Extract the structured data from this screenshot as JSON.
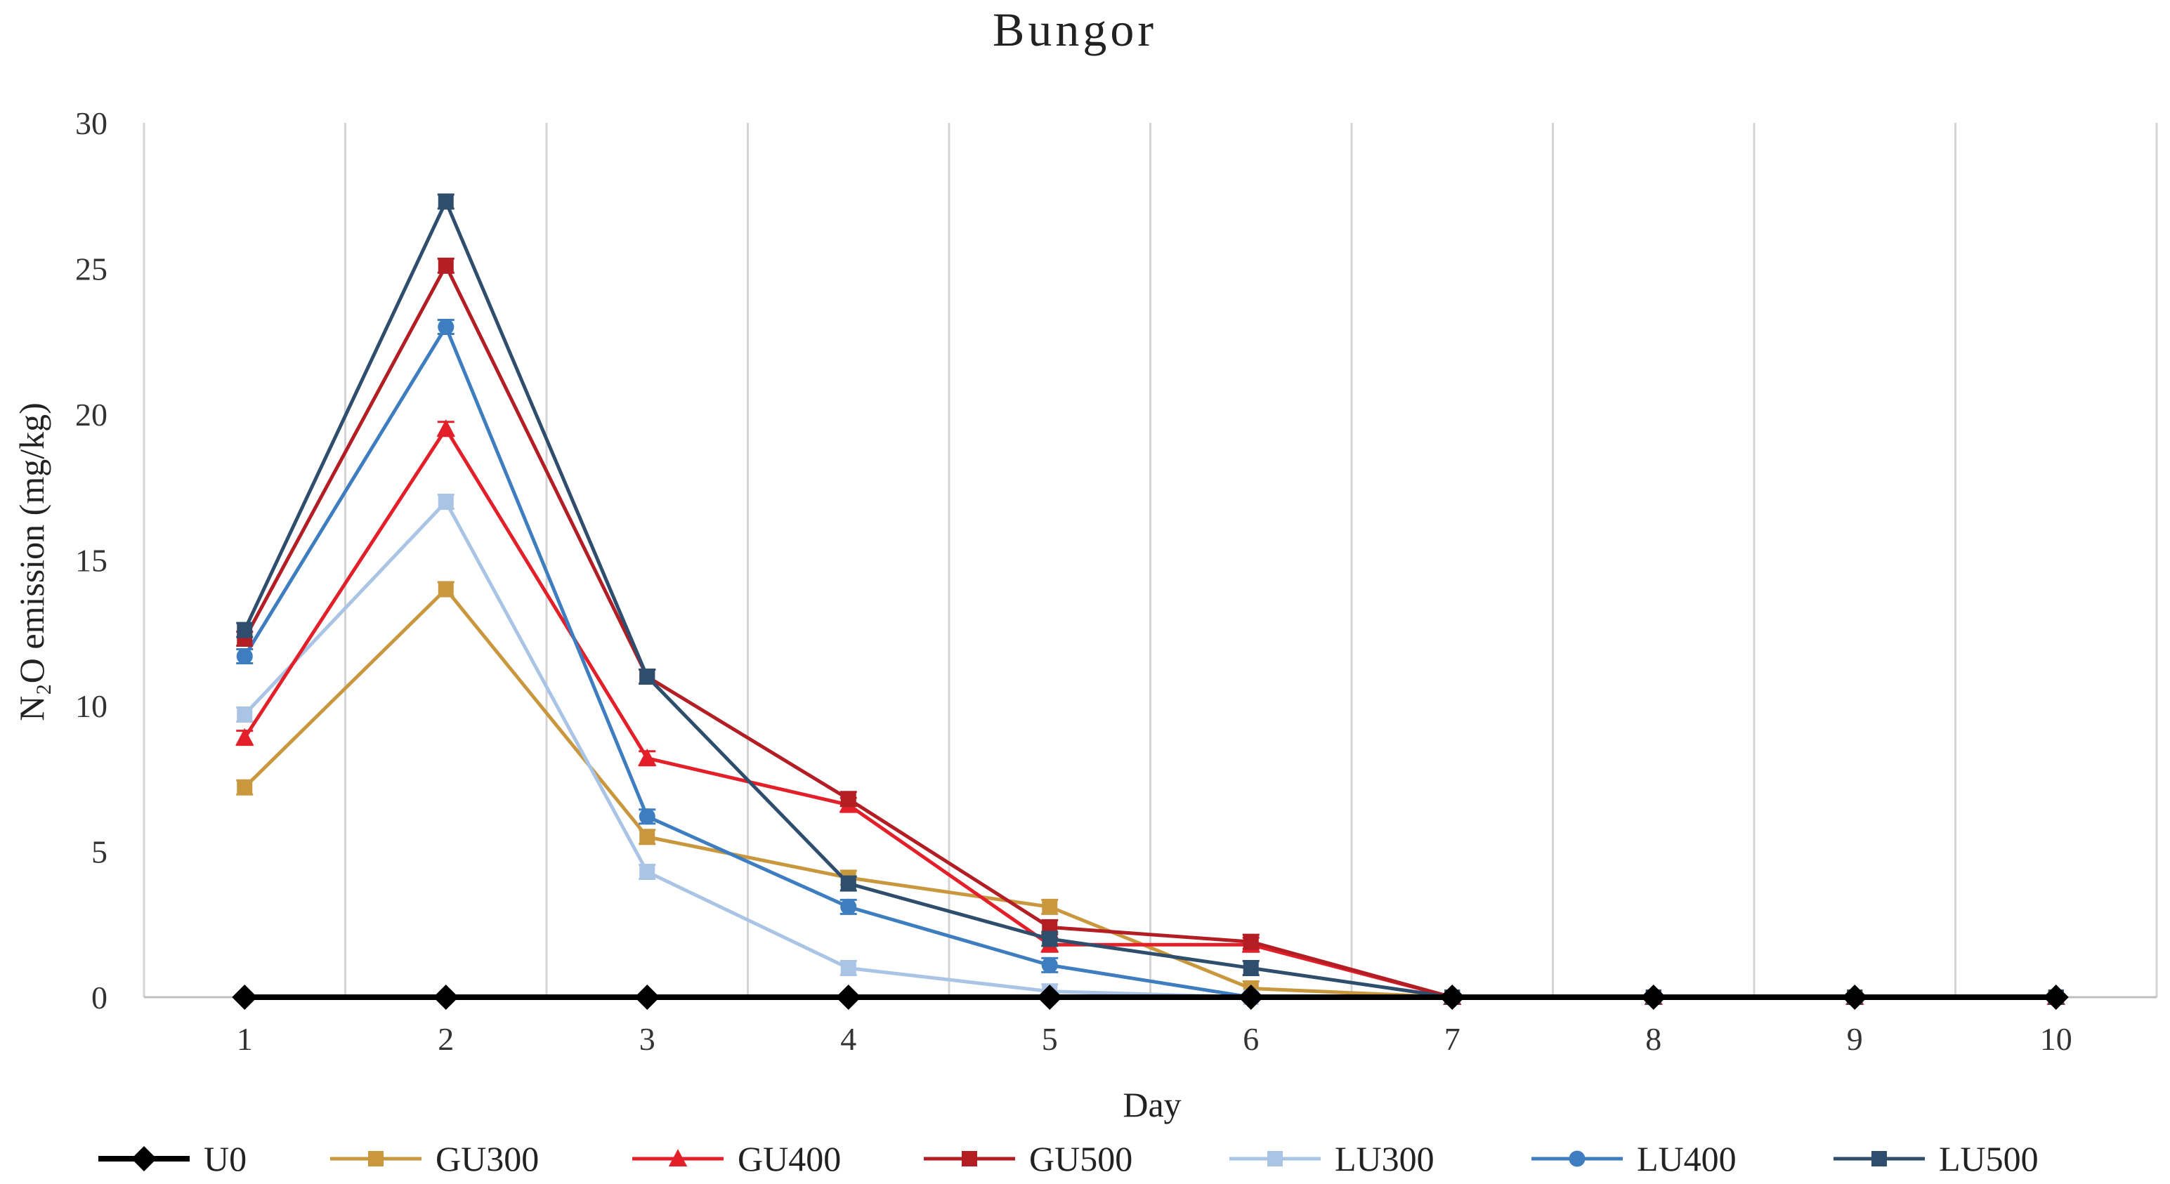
{
  "chart_data": {
    "type": "line",
    "title": "Bungor",
    "xlabel": "Day",
    "ylabel": "N₂O emission (mg/kg)",
    "x": [
      1,
      2,
      3,
      4,
      5,
      6,
      7,
      8,
      9,
      10
    ],
    "x_tick_labels": [
      "1",
      "2",
      "3",
      "4",
      "5",
      "6",
      "7",
      "8",
      "9",
      "10"
    ],
    "ylim": [
      0,
      30
    ],
    "y_ticks": [
      0,
      5,
      10,
      15,
      20,
      25,
      30
    ],
    "grid": "vertical",
    "legend_position": "bottom",
    "series": [
      {
        "name": "GU300",
        "color": "#C9983E",
        "marker": "square",
        "values": [
          7.2,
          14.0,
          5.5,
          4.1,
          3.1,
          0.3,
          0,
          0,
          0,
          0
        ]
      },
      {
        "name": "LU300",
        "color": "#A9C4E4",
        "marker": "square",
        "values": [
          9.7,
          17.0,
          4.3,
          1.0,
          0.2,
          0,
          0,
          0,
          0,
          0
        ]
      },
      {
        "name": "GU400",
        "color": "#E3202A",
        "marker": "triangle",
        "values": [
          8.9,
          19.5,
          8.2,
          6.6,
          1.8,
          1.8,
          0,
          0,
          0,
          0
        ]
      },
      {
        "name": "LU400",
        "color": "#3E7EC0",
        "marker": "circle",
        "values": [
          11.7,
          23.0,
          6.2,
          3.1,
          1.1,
          0,
          0,
          0,
          0,
          0
        ]
      },
      {
        "name": "GU500",
        "color": "#B21E24",
        "marker": "square",
        "values": [
          12.3,
          25.1,
          11.0,
          6.8,
          2.4,
          1.9,
          0,
          0,
          0,
          0
        ]
      },
      {
        "name": "LU500",
        "color": "#2F4E6E",
        "marker": "square",
        "values": [
          12.6,
          27.3,
          11.0,
          3.9,
          2.0,
          1.0,
          0,
          0,
          0,
          0
        ]
      },
      {
        "name": "U0",
        "color": "#000000",
        "marker": "diamond",
        "values": [
          0,
          0,
          0,
          0,
          0,
          0,
          0,
          0,
          0,
          0
        ]
      }
    ],
    "legend_order": [
      "U0",
      "GU300",
      "GU400",
      "GU500",
      "LU300",
      "LU400",
      "LU500"
    ]
  }
}
